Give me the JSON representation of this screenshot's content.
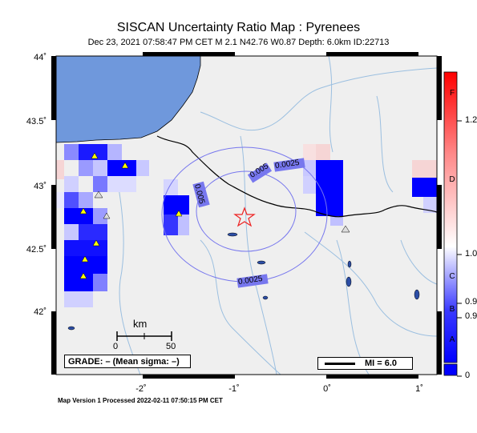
{
  "header": {
    "title": "SISCAN Uncertainty Ratio Map : Pyrenees",
    "subtitle": "Dec 23, 2021 07:58:47 PM CET   M 2.1   N42.76 W0.87   Depth: 6.0km   ID:22713"
  },
  "map": {
    "lat_labels": [
      "44˚",
      "43.5˚",
      "43˚",
      "42.5˚",
      "42˚"
    ],
    "lon_labels": [
      "-2˚",
      "-1˚",
      "0˚",
      "1˚"
    ],
    "contour_labels": [
      "0.0025",
      "0.005",
      "0.005",
      "0.0025"
    ],
    "scale_title": "km",
    "scale_start": "0",
    "scale_end": "50",
    "grade_text": "GRADE: – (Mean sigma: –)",
    "mi_text": "MI = 6.0",
    "epicenter": {
      "lat": 42.76,
      "lon": -0.87,
      "symbol": "star-icon"
    }
  },
  "colorbar": {
    "tick_labels": [
      "1.2",
      "1.0",
      "0.9",
      "0.9",
      "0"
    ],
    "grade_letters": [
      "F",
      "D",
      "C",
      "B",
      "A"
    ],
    "colors": {
      "low": "#0000ff",
      "mid": "#ffffff",
      "high": "#ff0000"
    }
  },
  "footer": {
    "text": "Map Version 1 Processed 2022-02-11 07:50:15 PM CET"
  },
  "colors": {
    "sea": "#6f98dc",
    "land": "#efefef",
    "rivers": "#9bbfe0",
    "contours": "#7777ee",
    "station": "#ffff00",
    "epicenter": "#ee2222"
  }
}
